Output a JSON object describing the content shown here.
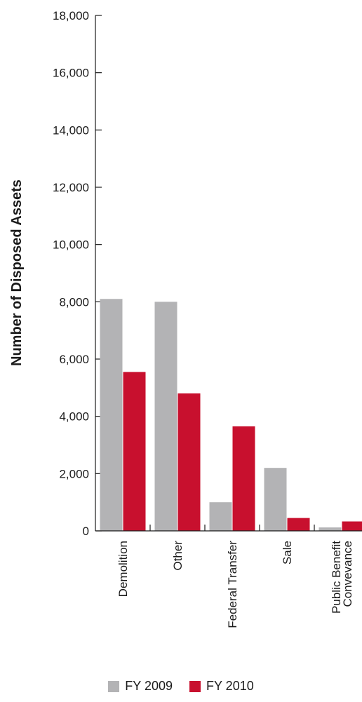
{
  "chart_data": {
    "type": "bar",
    "title": "",
    "xlabel": "",
    "ylabel": "Number of Disposed Assets",
    "ylim": [
      0,
      18000
    ],
    "yticks": [
      0,
      2000,
      4000,
      6000,
      8000,
      10000,
      12000,
      14000,
      16000,
      18000
    ],
    "ytick_labels": [
      "0",
      "2,000",
      "4,000",
      "6,000",
      "8,000",
      "10,000",
      "12,000",
      "14,000",
      "16,000",
      "18,000"
    ],
    "categories": [
      [
        "Demolition"
      ],
      [
        "Other"
      ],
      [
        "Federal Transfer"
      ],
      [
        "Sale"
      ],
      [
        "Public Benefit",
        "Convevance"
      ]
    ],
    "series": [
      {
        "name": "FY 2009",
        "color": "#b3b3b5",
        "values": [
          8100,
          8000,
          1000,
          2200,
          120
        ]
      },
      {
        "name": "FY 2010",
        "color": "#c8102e",
        "values": [
          5550,
          4800,
          3650,
          450,
          330
        ]
      }
    ],
    "legend_position": "bottom-center",
    "grid": false
  }
}
